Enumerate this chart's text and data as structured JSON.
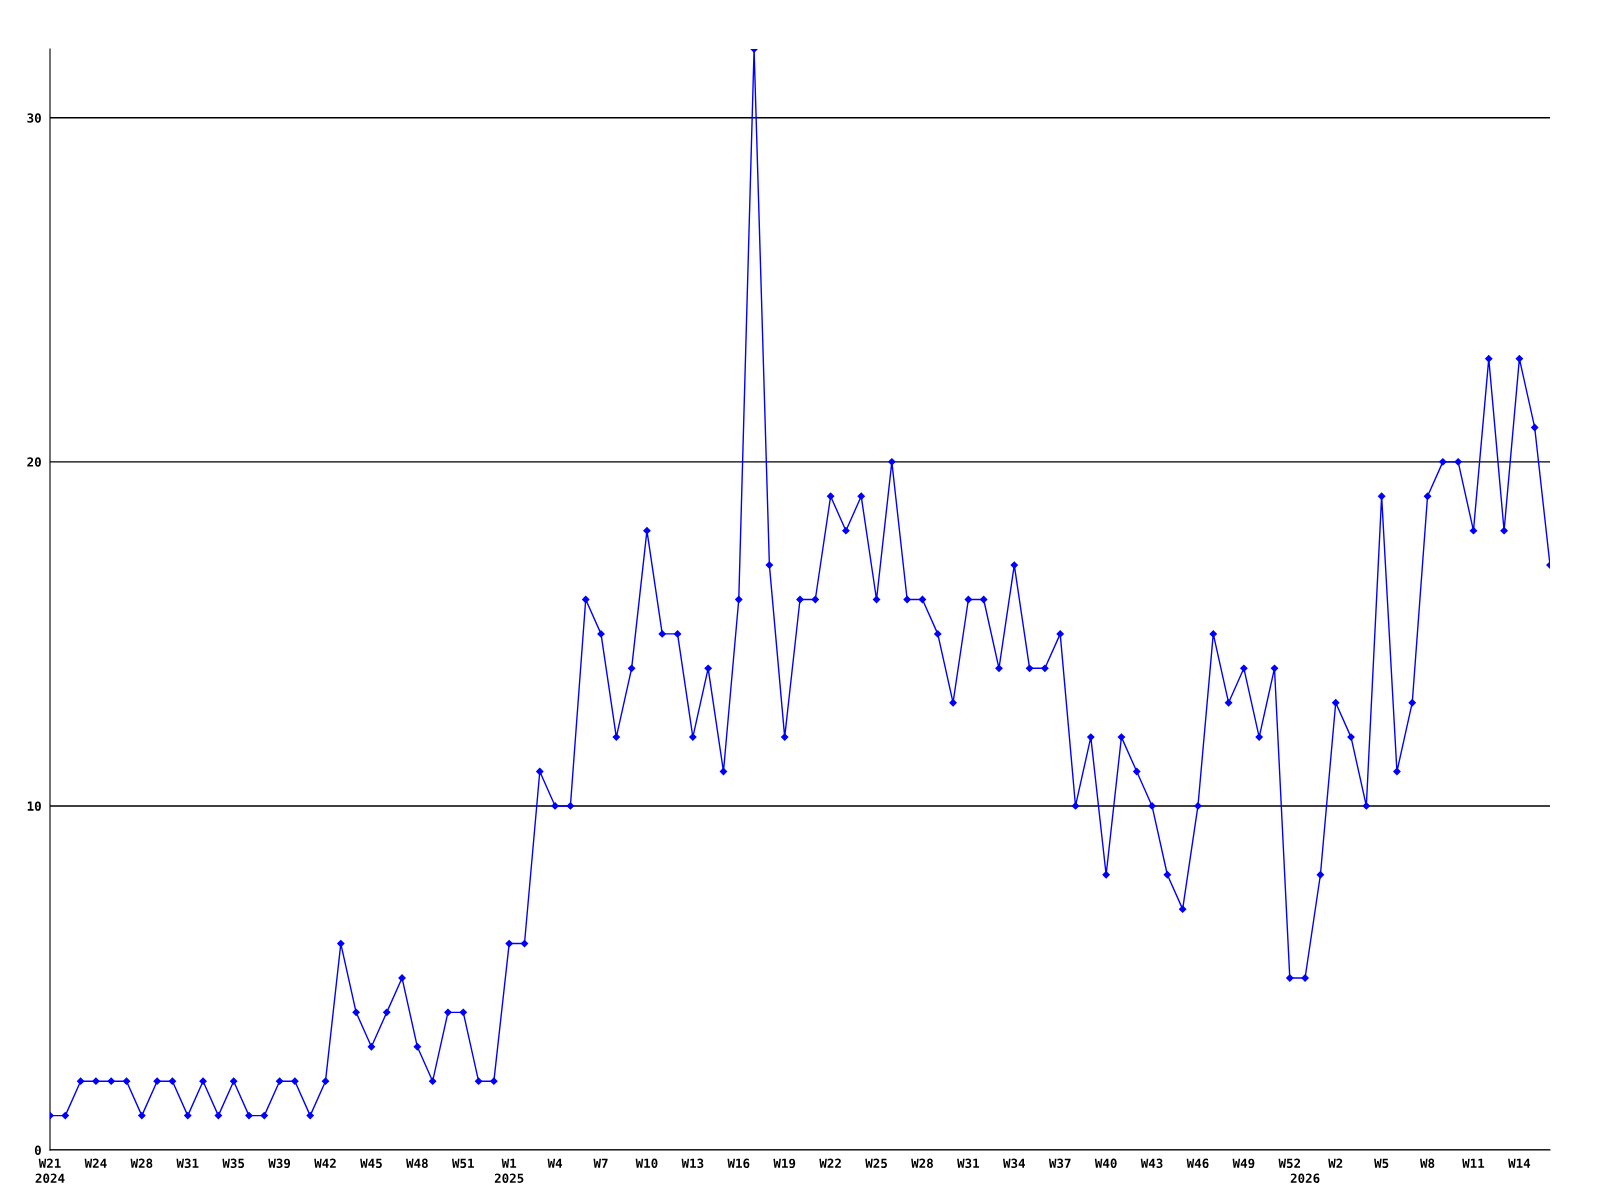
{
  "chart_data": {
    "type": "line",
    "categories": [
      "W21\n2024",
      null,
      null,
      "W24",
      null,
      null,
      "W28",
      null,
      null,
      "W31",
      null,
      null,
      "W35",
      null,
      null,
      "W39",
      null,
      null,
      "W42",
      null,
      null,
      "W45",
      null,
      null,
      "W48",
      null,
      null,
      "W51",
      null,
      null,
      "W1\n2025",
      null,
      null,
      "W4",
      null,
      null,
      "W7",
      null,
      null,
      "W10",
      null,
      null,
      "W13",
      null,
      null,
      "W16",
      null,
      null,
      "W19",
      null,
      null,
      "W22",
      null,
      null,
      "W25",
      null,
      null,
      "W28",
      null,
      null,
      "W31",
      null,
      null,
      "W34",
      null,
      null,
      "W37",
      null,
      null,
      "W40",
      null,
      null,
      "W43",
      null,
      null,
      "W46",
      null,
      null,
      "W49",
      null,
      null,
      "W52",
      "\n2026",
      null,
      "W2",
      null,
      null,
      "W5",
      null,
      null,
      "W8",
      null,
      null,
      "W11",
      null,
      null,
      "W14",
      null,
      null
    ],
    "series": [
      {
        "color": "#0000ff",
        "values": [
          1,
          1,
          2,
          2,
          2,
          2,
          1,
          2,
          2,
          1,
          2,
          1,
          2,
          1,
          1,
          2,
          2,
          1,
          2,
          6,
          4,
          3,
          4,
          5,
          3,
          2,
          4,
          4,
          2,
          2,
          6,
          6,
          11,
          10,
          10,
          16,
          15,
          12,
          14,
          18,
          15,
          15,
          12,
          14,
          11,
          16,
          32,
          17,
          12,
          16,
          16,
          19,
          18,
          19,
          16,
          20,
          16,
          16,
          15,
          13,
          16,
          16,
          14,
          17,
          14,
          14,
          15,
          10,
          12,
          8,
          12,
          11,
          10,
          8,
          7,
          10,
          15,
          13,
          14,
          12,
          14,
          5,
          5,
          8,
          13,
          12,
          10,
          19,
          11,
          13,
          19,
          20,
          20,
          18,
          23,
          18,
          23,
          21,
          17
        ]
      }
    ],
    "ylim": [
      0,
      32
    ],
    "yticks": [
      0,
      10,
      20,
      30
    ],
    "grid": "y",
    "marker": "diamond",
    "line_style": "solid",
    "legend": false
  }
}
